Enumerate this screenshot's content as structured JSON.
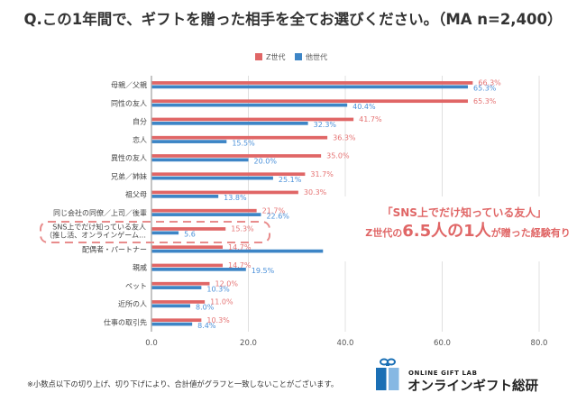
{
  "title": "Q.この1年間で、ギフトを贈った相手を全てお選びください。（MA n=2,400）",
  "legend": [
    {
      "name": "Z世代",
      "color": "#e06666"
    },
    {
      "name": "他世代",
      "color": "#3d85c6"
    }
  ],
  "chart_data": {
    "type": "bar",
    "orientation": "horizontal",
    "title": "Q.この1年間で、ギフトを贈った相手を全てお選びください。（MA n=2,400）",
    "xlabel": "",
    "ylabel": "",
    "xlim": [
      0,
      80
    ],
    "tick_values": [
      0,
      20,
      40,
      60,
      80
    ],
    "tick_labels": [
      "0.0",
      "20.0",
      "40.0",
      "60.0",
      "80.0"
    ],
    "grid": true,
    "legend_position": "top-center",
    "categories": [
      "母親／父親",
      "同性の友人",
      "自分",
      "恋人",
      "異性の友人",
      "兄弟／姉妹",
      "祖父母",
      "同じ会社の同僚／上司／後輩",
      "SNS上でだけ知っている友人\n（推し活、オンラインゲーム…",
      "配偶者・パートナー",
      "親戚",
      "ペット",
      "近所の人",
      "仕事の取引先"
    ],
    "series": [
      {
        "name": "Z世代",
        "color": "#e06666",
        "label_color": "#e57373",
        "values": [
          66.3,
          65.3,
          41.7,
          36.3,
          35.0,
          31.7,
          30.3,
          21.7,
          15.3,
          14.7,
          14.7,
          12.0,
          11.0,
          10.3
        ],
        "labels": [
          "66.3%",
          "65.3%",
          "41.7%",
          "36.3%",
          "35.0%",
          "31.7%",
          "30.3%",
          "21.7%",
          "15.3%",
          "14.7%",
          "14.7%",
          "12.0%",
          "11.0%",
          "10.3%"
        ]
      },
      {
        "name": "他世代",
        "color": "#3d85c6",
        "label_color": "#4a90d9",
        "values": [
          65.3,
          40.4,
          32.3,
          15.5,
          20.0,
          25.1,
          13.8,
          22.6,
          5.6,
          35.4,
          19.5,
          10.3,
          8.0,
          8.4
        ],
        "labels": [
          "65.3%",
          "40.4%",
          "32.3%",
          "15.5%",
          "20.0%",
          "25.1%",
          "13.8%",
          "22.6%",
          "5.6",
          null,
          "19.5%",
          "10.3%",
          "8.0%",
          "8.4%"
        ]
      }
    ],
    "highlight_category": "SNS上でだけ知っている友人\n（推し活、オンラインゲーム…"
  },
  "callout": {
    "line1": "「SNS上でだけ知っている友人」",
    "line2_prefix": "Z世代の",
    "line2_emphasis": "6.5人の1人",
    "line2_suffix": "が贈った経験有り",
    "color": "#e06666"
  },
  "footnote": "※小数点以下の切り上げ、切り下げにより、合計値がグラフと一致しないことがございます。",
  "logo": {
    "subtitle": "ONLINE GIFT LAB",
    "name": "オンラインギフト総研",
    "icon": "gift-box-icon"
  }
}
